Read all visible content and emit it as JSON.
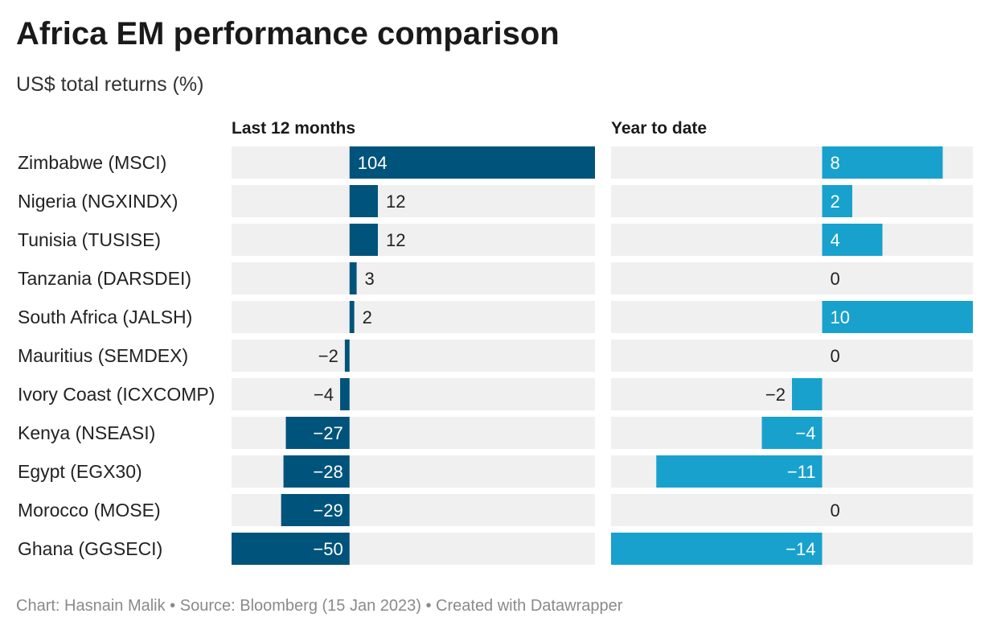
{
  "header": {
    "title": "Africa EM performance comparison",
    "subtitle": "US$ total returns (%)"
  },
  "footer": {
    "source": "Chart: Hasnain Malik • Source: Bloomberg (15 Jan 2023) • Created with Datawrapper"
  },
  "colors": {
    "last12": "#00537a",
    "ytd": "#18a1cd",
    "track": "#f0f0f0"
  },
  "chart_data": {
    "type": "bar",
    "orientation": "horizontal",
    "title": "Africa EM performance comparison",
    "subtitle": "US$ total returns (%)",
    "categories": [
      "Zimbabwe (MSCI)",
      "Nigeria (NGXINDX)",
      "Tunisia (TUSISE)",
      "Tanzania (DARSDEI)",
      "South Africa (JALSH)",
      "Mauritius (SEMDEX)",
      "Ivory Coast (ICXCOMP)",
      "Kenya (NSEASI)",
      "Egypt (EGX30)",
      "Morocco (MOSE)",
      "Ghana (GGSECI)"
    ],
    "series": [
      {
        "name": "Last 12 months",
        "values": [
          104,
          12,
          12,
          3,
          2,
          -2,
          -4,
          -27,
          -28,
          -29,
          -50
        ],
        "labels": [
          "104",
          "12",
          "12",
          "3",
          "2",
          "−2",
          "−4",
          "−27",
          "−28",
          "−29",
          "−50"
        ],
        "xlim": [
          -50,
          104
        ]
      },
      {
        "name": "Year to date",
        "values": [
          8,
          2,
          4,
          0,
          10,
          0,
          -2,
          -4,
          -11,
          0,
          -14
        ],
        "labels": [
          "8",
          "2",
          "4",
          "0",
          "10",
          "0",
          "−2",
          "−4",
          "−11",
          "0",
          "−14"
        ],
        "xlim": [
          -14,
          10
        ]
      }
    ],
    "grid": false,
    "legend": "none"
  }
}
